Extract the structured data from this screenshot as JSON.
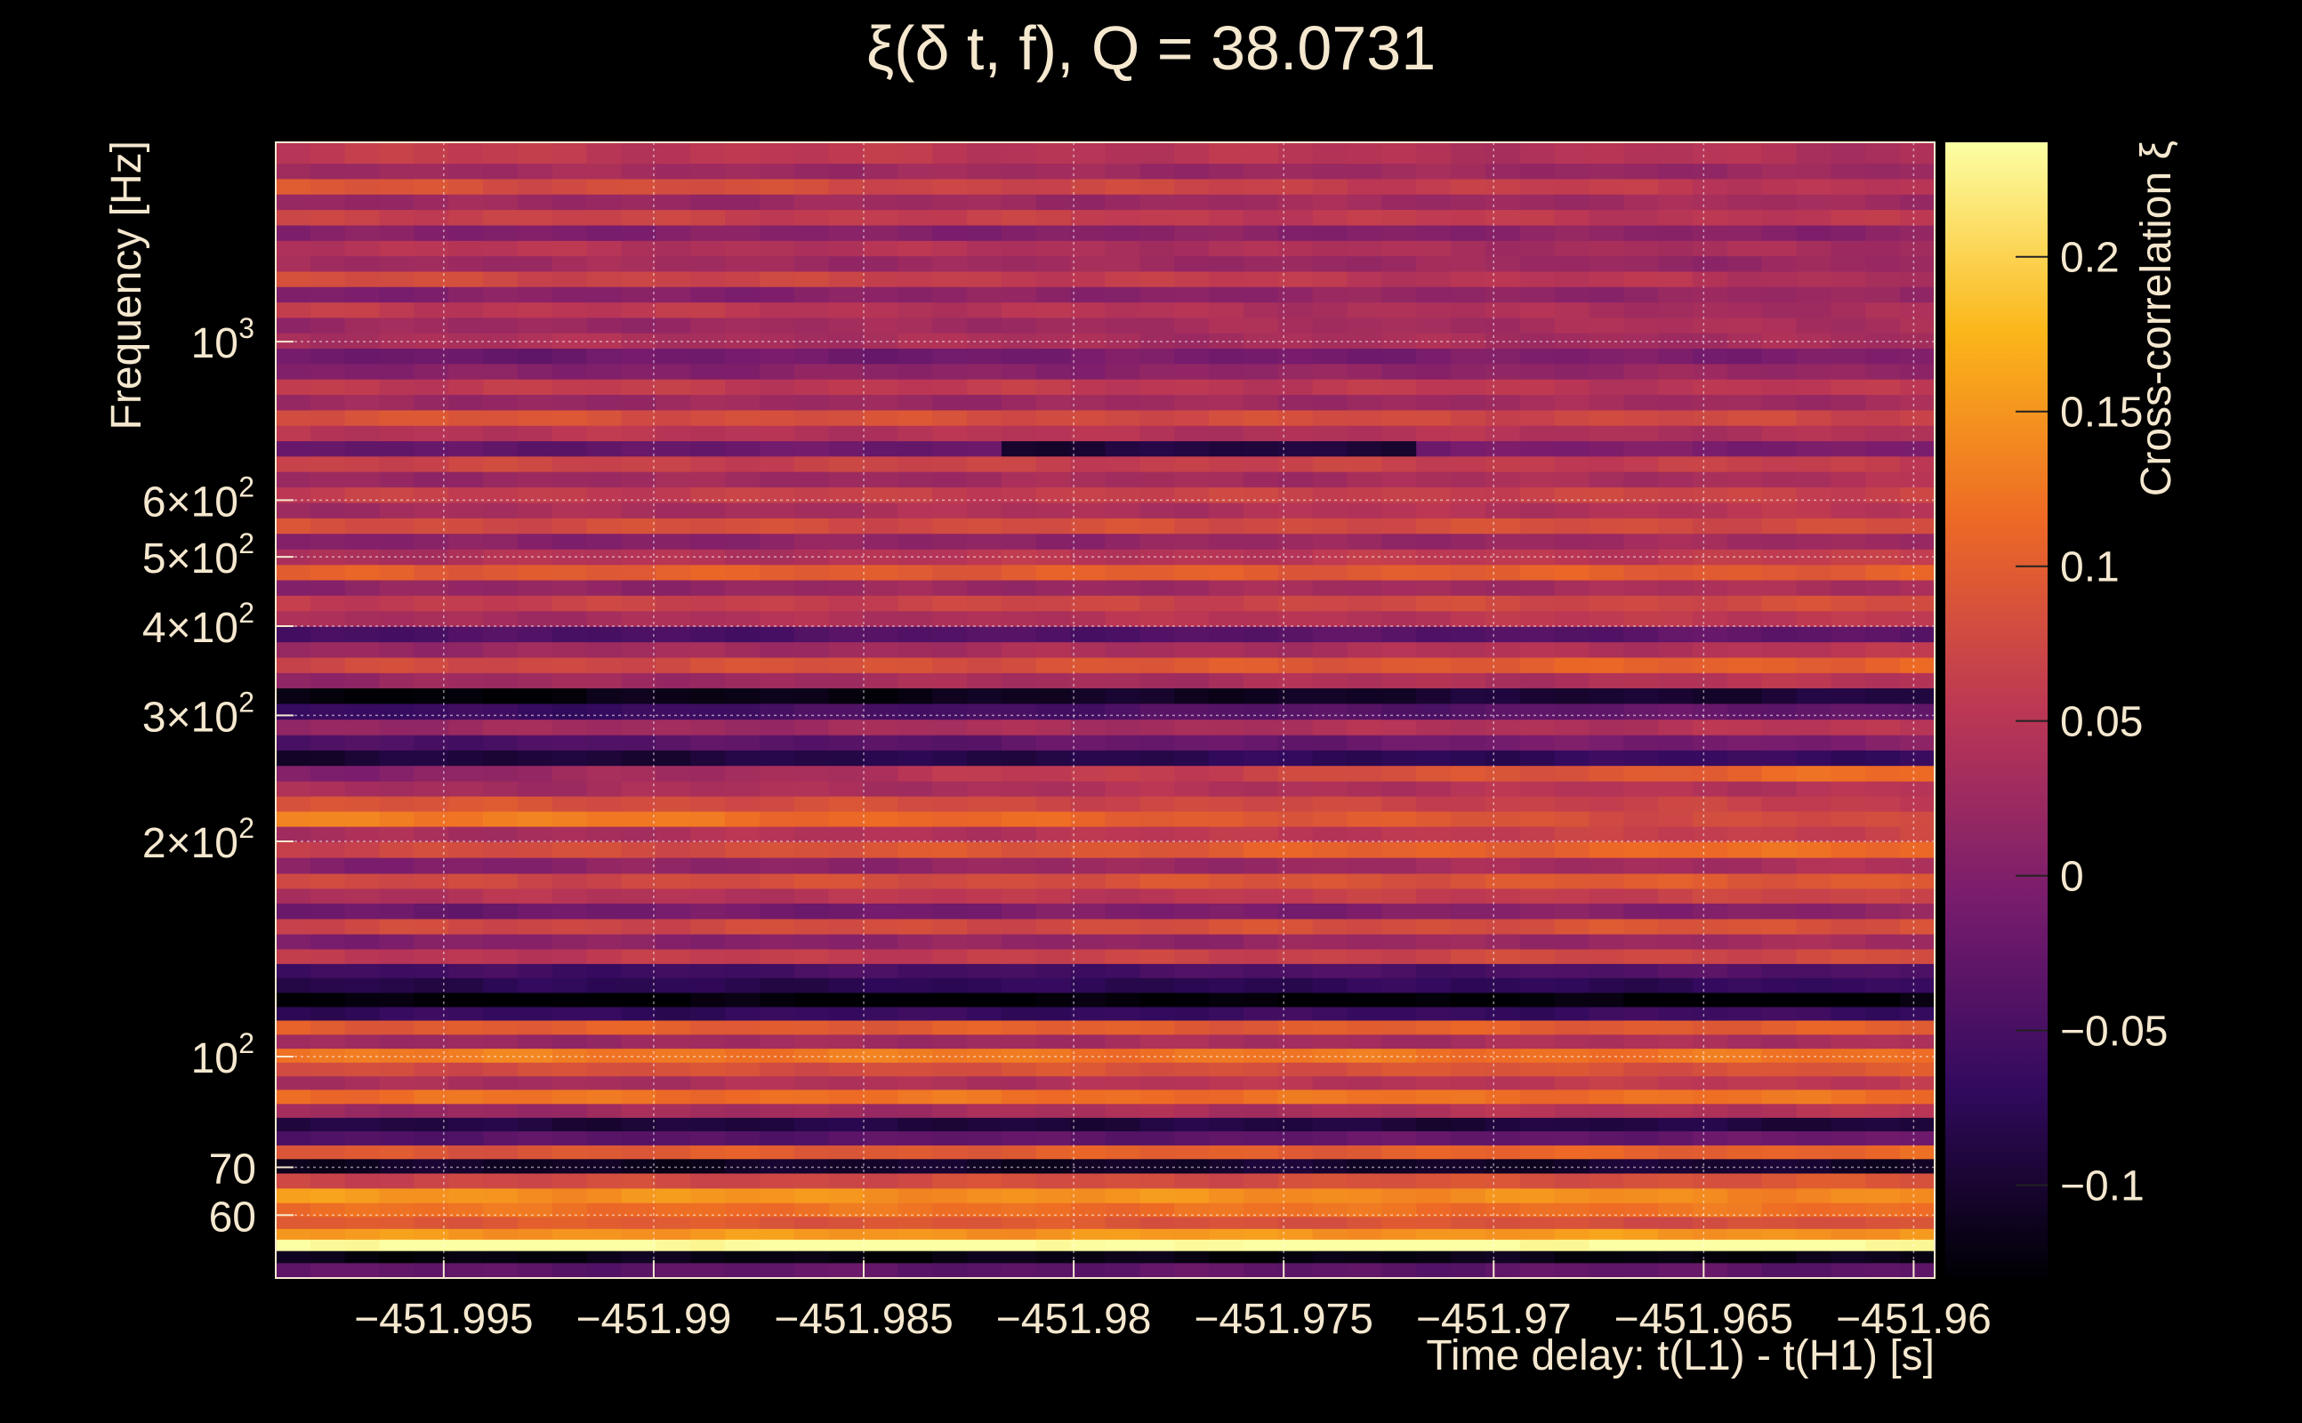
{
  "chart_data": {
    "type": "heatmap",
    "title": "ξ(δ t, f), Q = 38.0731",
    "xlabel": "Time delay: t(L1) - t(H1) [s]",
    "ylabel": "Frequency [Hz]",
    "colorbar_label": "Cross-correlation ξ",
    "xlim": [
      -451.999,
      -451.9595
    ],
    "ylim": [
      49,
      1900
    ],
    "yscale": "log",
    "grid": true,
    "x_ticks": [
      {
        "value": -451.995,
        "label": "−451.995"
      },
      {
        "value": -451.99,
        "label": "−451.99"
      },
      {
        "value": -451.985,
        "label": "−451.985"
      },
      {
        "value": -451.98,
        "label": "−451.98"
      },
      {
        "value": -451.975,
        "label": "−451.975"
      },
      {
        "value": -451.97,
        "label": "−451.97"
      },
      {
        "value": -451.965,
        "label": "−451.965"
      },
      {
        "value": -451.96,
        "label": "−451.96"
      }
    ],
    "y_ticks": [
      {
        "value": 60,
        "base": "60",
        "exp": ""
      },
      {
        "value": 70,
        "base": "70",
        "exp": ""
      },
      {
        "value": 100,
        "base": "10",
        "exp": "2"
      },
      {
        "value": 200,
        "base": "2×10",
        "exp": "2"
      },
      {
        "value": 300,
        "base": "3×10",
        "exp": "2"
      },
      {
        "value": 400,
        "base": "4×10",
        "exp": "2"
      },
      {
        "value": 500,
        "base": "5×10",
        "exp": "2"
      },
      {
        "value": 600,
        "base": "6×10",
        "exp": "2"
      },
      {
        "value": 1000,
        "base": "10",
        "exp": "3"
      }
    ],
    "colorbar": {
      "range": [
        -0.13,
        0.237
      ],
      "ticks": [
        {
          "value": 0.2,
          "label": "0.2"
        },
        {
          "value": 0.15,
          "label": "0.15"
        },
        {
          "value": 0.1,
          "label": "0.1"
        },
        {
          "value": 0.05,
          "label": "0.05"
        },
        {
          "value": 0,
          "label": "0"
        },
        {
          "value": -0.05,
          "label": "−0.05"
        },
        {
          "value": -0.1,
          "label": "−0.1"
        }
      ],
      "colormap": "inferno",
      "stops": [
        "#000004",
        "#320a5e",
        "#781c6d",
        "#bc3754",
        "#ed6925",
        "#fbb61a",
        "#fcffa4"
      ]
    },
    "frequency_bands": [
      {
        "f": 50.5,
        "start": -0.03,
        "end": -0.03
      },
      {
        "f": 52.5,
        "start": -0.12,
        "end": -0.12
      },
      {
        "f": 54.6,
        "start": 0.24,
        "end": 0.24
      },
      {
        "f": 56.5,
        "start": 0.15,
        "end": 0.15
      },
      {
        "f": 58.5,
        "start": 0.1,
        "end": 0.08
      },
      {
        "f": 61,
        "start": 0.12,
        "end": 0.12
      },
      {
        "f": 64,
        "start": 0.15,
        "end": 0.14
      },
      {
        "f": 67,
        "start": 0.07,
        "end": 0.09
      },
      {
        "f": 70.5,
        "start": -0.11,
        "end": -0.1
      },
      {
        "f": 73.5,
        "start": 0.09,
        "end": 0.11
      },
      {
        "f": 77,
        "start": -0.04,
        "end": -0.02
      },
      {
        "f": 80.5,
        "start": -0.09,
        "end": -0.09
      },
      {
        "f": 84,
        "start": 0.02,
        "end": 0.05
      },
      {
        "f": 88,
        "start": 0.12,
        "end": 0.12
      },
      {
        "f": 92,
        "start": 0.03,
        "end": 0.06
      },
      {
        "f": 96,
        "start": 0.08,
        "end": 0.09
      },
      {
        "f": 100.5,
        "start": 0.13,
        "end": 0.12
      },
      {
        "f": 105,
        "start": 0.02,
        "end": 0.04
      },
      {
        "f": 110,
        "start": 0.1,
        "end": 0.1
      },
      {
        "f": 115,
        "start": -0.07,
        "end": -0.06
      },
      {
        "f": 120,
        "start": -0.13,
        "end": -0.13
      },
      {
        "f": 126,
        "start": -0.08,
        "end": -0.07
      },
      {
        "f": 132,
        "start": -0.06,
        "end": -0.04
      },
      {
        "f": 138,
        "start": 0.05,
        "end": 0.08
      },
      {
        "f": 145,
        "start": 0.0,
        "end": 0.03
      },
      {
        "f": 152,
        "start": 0.07,
        "end": 0.09
      },
      {
        "f": 160,
        "start": -0.02,
        "end": 0.01
      },
      {
        "f": 168,
        "start": 0.04,
        "end": 0.07
      },
      {
        "f": 176,
        "start": 0.07,
        "end": 0.1
      },
      {
        "f": 185,
        "start": 0.0,
        "end": 0.04
      },
      {
        "f": 195,
        "start": 0.07,
        "end": 0.12
      },
      {
        "f": 205,
        "start": 0.03,
        "end": 0.07
      },
      {
        "f": 215,
        "start": 0.14,
        "end": 0.07
      },
      {
        "f": 226,
        "start": 0.09,
        "end": 0.06
      },
      {
        "f": 237,
        "start": 0.03,
        "end": 0.05
      },
      {
        "f": 249,
        "start": 0.0,
        "end": 0.12
      },
      {
        "f": 262,
        "start": -0.1,
        "end": -0.06
      },
      {
        "f": 275,
        "start": -0.05,
        "end": 0.0
      },
      {
        "f": 289,
        "start": 0.02,
        "end": 0.05
      },
      {
        "f": 304,
        "start": -0.07,
        "end": -0.02
      },
      {
        "f": 320,
        "start": -0.13,
        "end": -0.09
      },
      {
        "f": 336,
        "start": 0.02,
        "end": 0.05
      },
      {
        "f": 353,
        "start": 0.07,
        "end": 0.11
      },
      {
        "f": 371,
        "start": 0.02,
        "end": 0.05
      },
      {
        "f": 390,
        "start": -0.05,
        "end": -0.03
      },
      {
        "f": 410,
        "start": 0.03,
        "end": 0.06
      },
      {
        "f": 431,
        "start": 0.06,
        "end": 0.08
      },
      {
        "f": 453,
        "start": 0.01,
        "end": 0.04
      },
      {
        "f": 476,
        "start": 0.1,
        "end": 0.1
      },
      {
        "f": 500,
        "start": 0.04,
        "end": 0.06
      },
      {
        "f": 526,
        "start": 0.0,
        "end": 0.03
      },
      {
        "f": 553,
        "start": 0.08,
        "end": 0.08
      },
      {
        "f": 581,
        "start": 0.03,
        "end": 0.05
      },
      {
        "f": 611,
        "start": 0.06,
        "end": 0.07
      },
      {
        "f": 642,
        "start": 0.02,
        "end": 0.04
      },
      {
        "f": 675,
        "start": 0.07,
        "end": 0.06
      },
      {
        "f": 709,
        "start": -0.03,
        "end": 0.0
      },
      {
        "f": 745,
        "start": 0.05,
        "end": 0.04
      },
      {
        "f": 783,
        "start": 0.09,
        "end": 0.07
      },
      {
        "f": 823,
        "start": 0.02,
        "end": 0.03
      },
      {
        "f": 865,
        "start": 0.06,
        "end": 0.05
      },
      {
        "f": 909,
        "start": 0.0,
        "end": 0.02
      },
      {
        "f": 955,
        "start": -0.02,
        "end": 0.0
      },
      {
        "f": 1004,
        "start": 0.04,
        "end": 0.03
      },
      {
        "f": 1055,
        "start": 0.02,
        "end": 0.04
      },
      {
        "f": 1108,
        "start": 0.06,
        "end": 0.03
      },
      {
        "f": 1165,
        "start": 0.0,
        "end": 0.02
      },
      {
        "f": 1224,
        "start": 0.08,
        "end": 0.04
      },
      {
        "f": 1286,
        "start": 0.03,
        "end": 0.02
      },
      {
        "f": 1352,
        "start": 0.05,
        "end": 0.03
      },
      {
        "f": 1420,
        "start": 0.0,
        "end": 0.01
      },
      {
        "f": 1493,
        "start": 0.07,
        "end": 0.05
      },
      {
        "f": 1569,
        "start": 0.02,
        "end": 0.03
      },
      {
        "f": 1649,
        "start": 0.09,
        "end": 0.05
      },
      {
        "f": 1733,
        "start": 0.03,
        "end": 0.02
      },
      {
        "f": 1821,
        "start": 0.06,
        "end": 0.04
      }
    ],
    "dark_streak": {
      "f_min": 700,
      "f_max": 720,
      "x_min": -451.982,
      "x_max": -451.972,
      "delta": -0.08
    }
  }
}
